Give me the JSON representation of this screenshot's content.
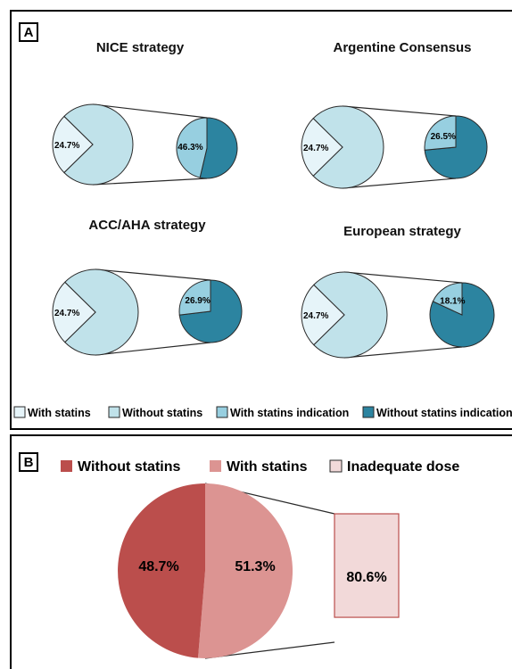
{
  "panel_a": {
    "tag": "A",
    "legend": [
      {
        "label": "With statins",
        "color": "#e6f4f9"
      },
      {
        "label": "Without statins",
        "color": "#c0e2ea"
      },
      {
        "label": "With statins indication",
        "color": "#97cfe0"
      },
      {
        "label": "Without statins indication",
        "color": "#2c84a0"
      }
    ]
  },
  "panel_b": {
    "tag": "B",
    "legend": [
      {
        "label": "Without statins",
        "color": "#bb4e4c"
      },
      {
        "label": "With statins",
        "color": "#dc9492"
      },
      {
        "label": "Inadequate dose",
        "color": "#f2d9d9"
      }
    ]
  },
  "chart_data": [
    {
      "type": "pie",
      "title": "NICE strategy",
      "categories": [
        "With statins",
        "Without statins"
      ],
      "values": [
        24.7,
        75.3
      ],
      "labels": [
        "24.7%",
        ""
      ],
      "detail": {
        "categories": [
          "With statins indication",
          "Without statins indication"
        ],
        "values": [
          46.3,
          53.7
        ],
        "labels": [
          "46.3%",
          ""
        ]
      }
    },
    {
      "type": "pie",
      "title": "Argentine Consensus",
      "categories": [
        "With statins",
        "Without statins"
      ],
      "values": [
        24.7,
        75.3
      ],
      "labels": [
        "24.7%",
        ""
      ],
      "detail": {
        "categories": [
          "With statins indication",
          "Without statins indication"
        ],
        "values": [
          26.5,
          73.5
        ],
        "labels": [
          "26.5%",
          ""
        ]
      }
    },
    {
      "type": "pie",
      "title": "ACC/AHA strategy",
      "categories": [
        "With statins",
        "Without statins"
      ],
      "values": [
        24.7,
        75.3
      ],
      "labels": [
        "24.7%",
        ""
      ],
      "detail": {
        "categories": [
          "With statins indication",
          "Without statins indication"
        ],
        "values": [
          26.9,
          73.1
        ],
        "labels": [
          "26.9%",
          ""
        ]
      }
    },
    {
      "type": "pie",
      "title": "European strategy",
      "categories": [
        "With statins",
        "Without statins"
      ],
      "values": [
        24.7,
        75.3
      ],
      "labels": [
        "24.7%",
        ""
      ],
      "detail": {
        "categories": [
          "With statins indication",
          "Without statins indication"
        ],
        "values": [
          18.1,
          81.9
        ],
        "labels": [
          "18.1%",
          ""
        ]
      }
    },
    {
      "type": "pie",
      "title": "",
      "categories": [
        "Without statins",
        "With statins"
      ],
      "values": [
        48.7,
        51.3
      ],
      "labels": [
        "48.7%",
        "51.3%"
      ],
      "detail": {
        "type": "bar",
        "categories": [
          "Inadequate dose"
        ],
        "values": [
          80.6
        ],
        "labels": [
          "80.6%"
        ]
      }
    }
  ]
}
